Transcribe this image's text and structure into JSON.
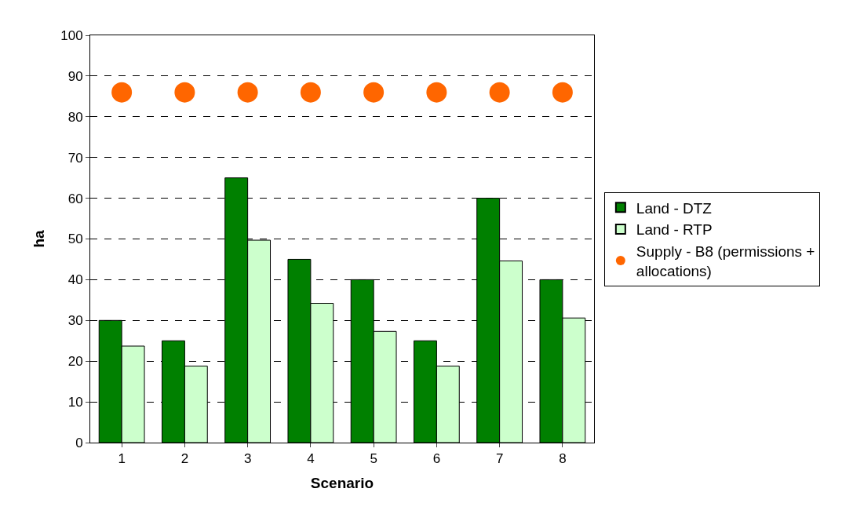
{
  "chart_data": {
    "type": "bar",
    "xlabel": "Scenario",
    "ylabel": "ha",
    "categories": [
      "1",
      "2",
      "3",
      "4",
      "5",
      "6",
      "7",
      "8"
    ],
    "series": [
      {
        "name": "Land - DTZ",
        "color": "#008000",
        "values": [
          30,
          25,
          65,
          45,
          40,
          25,
          60,
          40
        ]
      },
      {
        "name": "Land - RTP",
        "color": "#ccffcc",
        "values": [
          23.7,
          18.8,
          49.7,
          34.2,
          27.3,
          18.8,
          44.6,
          30.6
        ]
      },
      {
        "name": "Supply - B8 (permissions + allocations)",
        "type": "scatter",
        "color": "#ff6600",
        "marker": "circle",
        "x": [
          "1",
          "2",
          "3",
          "4",
          "5",
          "6",
          "7",
          "8"
        ],
        "values": [
          86,
          86,
          86,
          86,
          86,
          86,
          86,
          86
        ]
      }
    ],
    "ylim": [
      0,
      100
    ],
    "yticks": [
      0,
      10,
      20,
      30,
      40,
      50,
      60,
      70,
      80,
      90,
      100
    ],
    "grid": "y",
    "legend": "right"
  }
}
